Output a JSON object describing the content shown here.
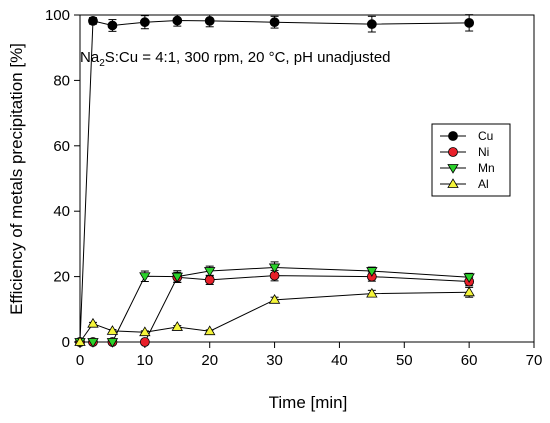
{
  "chart_data": {
    "type": "line",
    "ylabel": "Efficiency of metals precipitation [%]",
    "xlabel": "Time [min]",
    "annotation": {
      "prefix": "Na",
      "subscript": "2",
      "rest": "S:Cu = 4:1, 300 rpm, 20 °C, pH unadjusted"
    },
    "xlim": [
      0,
      70
    ],
    "ylim": [
      0,
      100
    ],
    "x_ticks": [
      0,
      10,
      20,
      30,
      40,
      50,
      60,
      70
    ],
    "y_ticks": [
      0,
      20,
      40,
      60,
      80,
      100
    ],
    "legend_position": "right",
    "series": [
      {
        "name": "Cu",
        "marker": "circle",
        "color": "#000000",
        "points": [
          {
            "x": 0,
            "y": 0,
            "err": 0
          },
          {
            "x": 2,
            "y": 98.2,
            "err": 1
          },
          {
            "x": 5,
            "y": 96.8,
            "err": 1.8
          },
          {
            "x": 10,
            "y": 97.8,
            "err": 2
          },
          {
            "x": 15,
            "y": 98.3,
            "err": 1.7
          },
          {
            "x": 20,
            "y": 98.2,
            "err": 1.8
          },
          {
            "x": 30,
            "y": 97.8,
            "err": 1.8
          },
          {
            "x": 45,
            "y": 97.2,
            "err": 2.4
          },
          {
            "x": 60,
            "y": 97.6,
            "err": 2.5
          }
        ]
      },
      {
        "name": "Ni",
        "marker": "circle",
        "color": "#e8202a",
        "points": [
          {
            "x": 0,
            "y": 0,
            "err": 0
          },
          {
            "x": 2,
            "y": 0,
            "err": 0
          },
          {
            "x": 5,
            "y": 0,
            "err": 0
          },
          {
            "x": 10,
            "y": 0,
            "err": 0
          },
          {
            "x": 15,
            "y": 19.8,
            "err": 1.5
          },
          {
            "x": 20,
            "y": 19.0,
            "err": 1.4
          },
          {
            "x": 30,
            "y": 20.3,
            "err": 1.6
          },
          {
            "x": 45,
            "y": 20.0,
            "err": 1.4
          },
          {
            "x": 60,
            "y": 18.5,
            "err": 1.3
          }
        ]
      },
      {
        "name": "Mn",
        "marker": "triangle-down",
        "color": "#2bd12b",
        "points": [
          {
            "x": 0,
            "y": 0,
            "err": 0
          },
          {
            "x": 2,
            "y": 0,
            "err": 0
          },
          {
            "x": 5,
            "y": 0,
            "err": 0
          },
          {
            "x": 10,
            "y": 20.1,
            "err": 1.6
          },
          {
            "x": 15,
            "y": 20.0,
            "err": 1.8
          },
          {
            "x": 20,
            "y": 21.7,
            "err": 1.5
          },
          {
            "x": 30,
            "y": 22.8,
            "err": 1.7
          },
          {
            "x": 45,
            "y": 21.7,
            "err": 1.2
          },
          {
            "x": 60,
            "y": 19.8,
            "err": 1.2
          }
        ]
      },
      {
        "name": "Al",
        "marker": "triangle-up",
        "color": "#f5f53a",
        "points": [
          {
            "x": 0,
            "y": 0,
            "err": 0
          },
          {
            "x": 2,
            "y": 5.6,
            "err": 0.4
          },
          {
            "x": 5,
            "y": 3.4,
            "err": 0.4
          },
          {
            "x": 10,
            "y": 3.0,
            "err": 0.4
          },
          {
            "x": 15,
            "y": 4.6,
            "err": 0.4
          },
          {
            "x": 20,
            "y": 3.3,
            "err": 0.4
          },
          {
            "x": 30,
            "y": 12.9,
            "err": 0.8
          },
          {
            "x": 45,
            "y": 14.8,
            "err": 1.0
          },
          {
            "x": 60,
            "y": 15.2,
            "err": 1.5
          }
        ]
      }
    ]
  }
}
